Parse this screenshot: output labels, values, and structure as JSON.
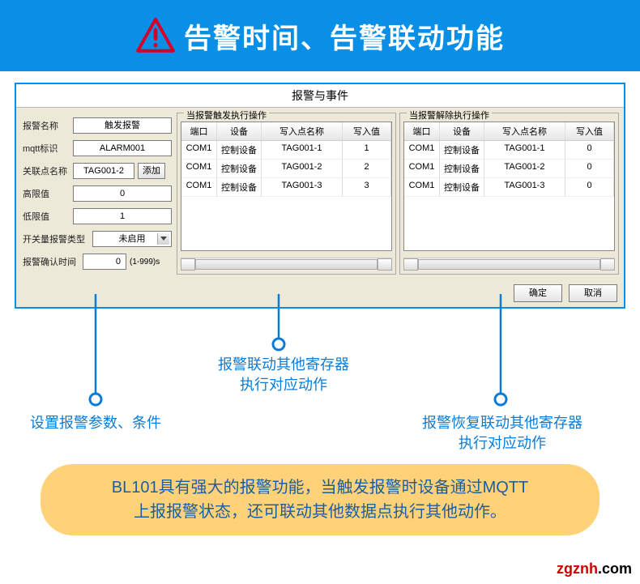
{
  "colors": {
    "banner_bg": "#0a8fe6",
    "banner_text": "#ffffff",
    "window_border": "#0a8fe6",
    "window_bg": "#ece9d8",
    "callout_color": "#0a7cd8",
    "orange_bg": "#ffd27a",
    "orange_text": "#1b5e9e"
  },
  "banner": {
    "title": "告警时间、告警联动功能"
  },
  "window": {
    "title": "报警与事件",
    "ok_label": "确定",
    "cancel_label": "取消"
  },
  "form": {
    "name_label": "报警名称",
    "name_value": "触发报警",
    "mqtt_label": "mqtt标识",
    "mqtt_value": "ALARM001",
    "link_label": "关联点名称",
    "link_value": "TAG001-2",
    "add_label": "添加",
    "highlimit_label": "高限值",
    "highlimit_value": "0",
    "lowlimit_label": "低限值",
    "lowlimit_value": "1",
    "switchtype_label": "开关量报警类型",
    "switchtype_value": "未启用",
    "confirm_label": "报警确认时间",
    "confirm_value": "0",
    "confirm_unit": "(1-999)s"
  },
  "trigger_panel": {
    "title": "当报警触发执行操作",
    "columns": [
      "端口",
      "设备",
      "写入点名称",
      "写入值"
    ],
    "rows": [
      [
        "COM1",
        "控制设备",
        "TAG001-1",
        "1"
      ],
      [
        "COM1",
        "控制设备",
        "TAG001-2",
        "2"
      ],
      [
        "COM1",
        "控制设备",
        "TAG001-3",
        "3"
      ]
    ]
  },
  "clear_panel": {
    "title": "当报警解除执行操作",
    "columns": [
      "端口",
      "设备",
      "写入点名称",
      "写入值"
    ],
    "rows": [
      [
        "COM1",
        "控制设备",
        "TAG001-1",
        "0"
      ],
      [
        "COM1",
        "控制设备",
        "TAG001-2",
        "0"
      ],
      [
        "COM1",
        "控制设备",
        "TAG001-3",
        "0"
      ]
    ]
  },
  "annotations": {
    "left": "设置报警参数、条件",
    "mid_line1": "报警联动其他寄存器",
    "mid_line2": "执行对应动作",
    "right_line1": "报警恢复联动其他寄存器",
    "right_line2": "执行对应动作"
  },
  "orange_banner": {
    "line1": "BL101具有强大的报警功能，当触发报警时设备通过MQTT",
    "line2": "上报报警状态，还可联动其他数据点执行其他动作。"
  },
  "watermark": {
    "part1": "zgznh",
    "part2": ".com"
  }
}
